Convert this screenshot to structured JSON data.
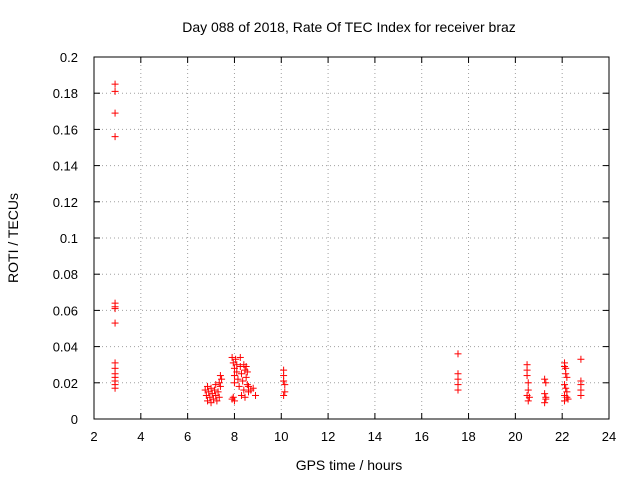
{
  "chart_data": {
    "type": "scatter",
    "title": "Day 088 of 2018, Rate Of TEC Index for receiver braz",
    "xlabel": "GPS time / hours",
    "ylabel": "ROTI / TECUs",
    "xlim": [
      2,
      24
    ],
    "ylim": [
      0,
      0.2
    ],
    "x_ticks": [
      2,
      4,
      6,
      8,
      10,
      12,
      14,
      16,
      18,
      20,
      22,
      24
    ],
    "x_tick_labels": [
      "2",
      "4",
      "6",
      "8",
      "10",
      "12",
      "14",
      "16",
      "18",
      "20",
      "22",
      "24"
    ],
    "y_ticks": [
      0,
      0.02,
      0.04,
      0.06,
      0.08,
      0.1,
      0.12,
      0.14,
      0.16,
      0.18,
      0.2
    ],
    "y_tick_labels": [
      "0",
      "0.02",
      "0.04",
      "0.06",
      "0.08",
      "0.1",
      "0.12",
      "0.14",
      "0.16",
      "0.18",
      "0.2"
    ],
    "grid": true,
    "marker": "plus",
    "series_color": "#ff0000",
    "points": [
      [
        2.9,
        0.185
      ],
      [
        2.9,
        0.181
      ],
      [
        2.9,
        0.169
      ],
      [
        2.9,
        0.156
      ],
      [
        2.9,
        0.064
      ],
      [
        2.9,
        0.062
      ],
      [
        2.9,
        0.061
      ],
      [
        2.9,
        0.053
      ],
      [
        2.9,
        0.031
      ],
      [
        2.9,
        0.028
      ],
      [
        2.9,
        0.025
      ],
      [
        2.9,
        0.023
      ],
      [
        2.9,
        0.021
      ],
      [
        2.9,
        0.019
      ],
      [
        2.9,
        0.017
      ],
      [
        6.75,
        0.016
      ],
      [
        6.8,
        0.013
      ],
      [
        6.85,
        0.01
      ],
      [
        6.9,
        0.015
      ],
      [
        6.95,
        0.012
      ],
      [
        7.0,
        0.009
      ],
      [
        7.0,
        0.017
      ],
      [
        7.05,
        0.014
      ],
      [
        7.1,
        0.011
      ],
      [
        7.15,
        0.016
      ],
      [
        7.2,
        0.013
      ],
      [
        7.25,
        0.01
      ],
      [
        7.3,
        0.015
      ],
      [
        7.35,
        0.012
      ],
      [
        7.35,
        0.02
      ],
      [
        7.4,
        0.018
      ],
      [
        7.4,
        0.024
      ],
      [
        7.45,
        0.022
      ],
      [
        7.2,
        0.019
      ],
      [
        6.85,
        0.018
      ],
      [
        7.9,
        0.034
      ],
      [
        7.95,
        0.031
      ],
      [
        8.0,
        0.028
      ],
      [
        8.0,
        0.024
      ],
      [
        8.0,
        0.02
      ],
      [
        8.05,
        0.033
      ],
      [
        8.1,
        0.03
      ],
      [
        8.1,
        0.026
      ],
      [
        8.15,
        0.022
      ],
      [
        8.2,
        0.018
      ],
      [
        8.25,
        0.034
      ],
      [
        8.25,
        0.029
      ],
      [
        8.3,
        0.025
      ],
      [
        8.35,
        0.021
      ],
      [
        8.4,
        0.016
      ],
      [
        8.4,
        0.03
      ],
      [
        8.45,
        0.027
      ],
      [
        8.5,
        0.023
      ],
      [
        8.55,
        0.019
      ],
      [
        8.6,
        0.015
      ],
      [
        8.3,
        0.013
      ],
      [
        8.45,
        0.012
      ],
      [
        7.95,
        0.012
      ],
      [
        8.0,
        0.01
      ],
      [
        7.9,
        0.011
      ],
      [
        8.5,
        0.029
      ],
      [
        8.55,
        0.026
      ],
      [
        8.6,
        0.018
      ],
      [
        8.7,
        0.016
      ],
      [
        8.8,
        0.017
      ],
      [
        8.9,
        0.013
      ],
      [
        10.1,
        0.027
      ],
      [
        10.1,
        0.024
      ],
      [
        10.1,
        0.021
      ],
      [
        10.15,
        0.019
      ],
      [
        10.15,
        0.015
      ],
      [
        10.1,
        0.013
      ],
      [
        17.55,
        0.036
      ],
      [
        17.55,
        0.025
      ],
      [
        17.55,
        0.022
      ],
      [
        17.55,
        0.019
      ],
      [
        17.55,
        0.016
      ],
      [
        20.5,
        0.03
      ],
      [
        20.5,
        0.027
      ],
      [
        20.5,
        0.024
      ],
      [
        20.55,
        0.02
      ],
      [
        20.55,
        0.016
      ],
      [
        20.5,
        0.013
      ],
      [
        20.55,
        0.01
      ],
      [
        20.6,
        0.012
      ],
      [
        21.25,
        0.022
      ],
      [
        21.25,
        0.014
      ],
      [
        21.3,
        0.012
      ],
      [
        21.3,
        0.011
      ],
      [
        21.25,
        0.009
      ],
      [
        21.3,
        0.02
      ],
      [
        22.1,
        0.031
      ],
      [
        22.1,
        0.029
      ],
      [
        22.15,
        0.028
      ],
      [
        22.15,
        0.025
      ],
      [
        22.2,
        0.023
      ],
      [
        22.1,
        0.019
      ],
      [
        22.15,
        0.017
      ],
      [
        22.2,
        0.015
      ],
      [
        22.1,
        0.013
      ],
      [
        22.2,
        0.012
      ],
      [
        22.25,
        0.011
      ],
      [
        22.1,
        0.01
      ],
      [
        22.8,
        0.033
      ],
      [
        22.8,
        0.021
      ],
      [
        22.8,
        0.019
      ],
      [
        22.8,
        0.016
      ],
      [
        22.8,
        0.013
      ]
    ]
  }
}
